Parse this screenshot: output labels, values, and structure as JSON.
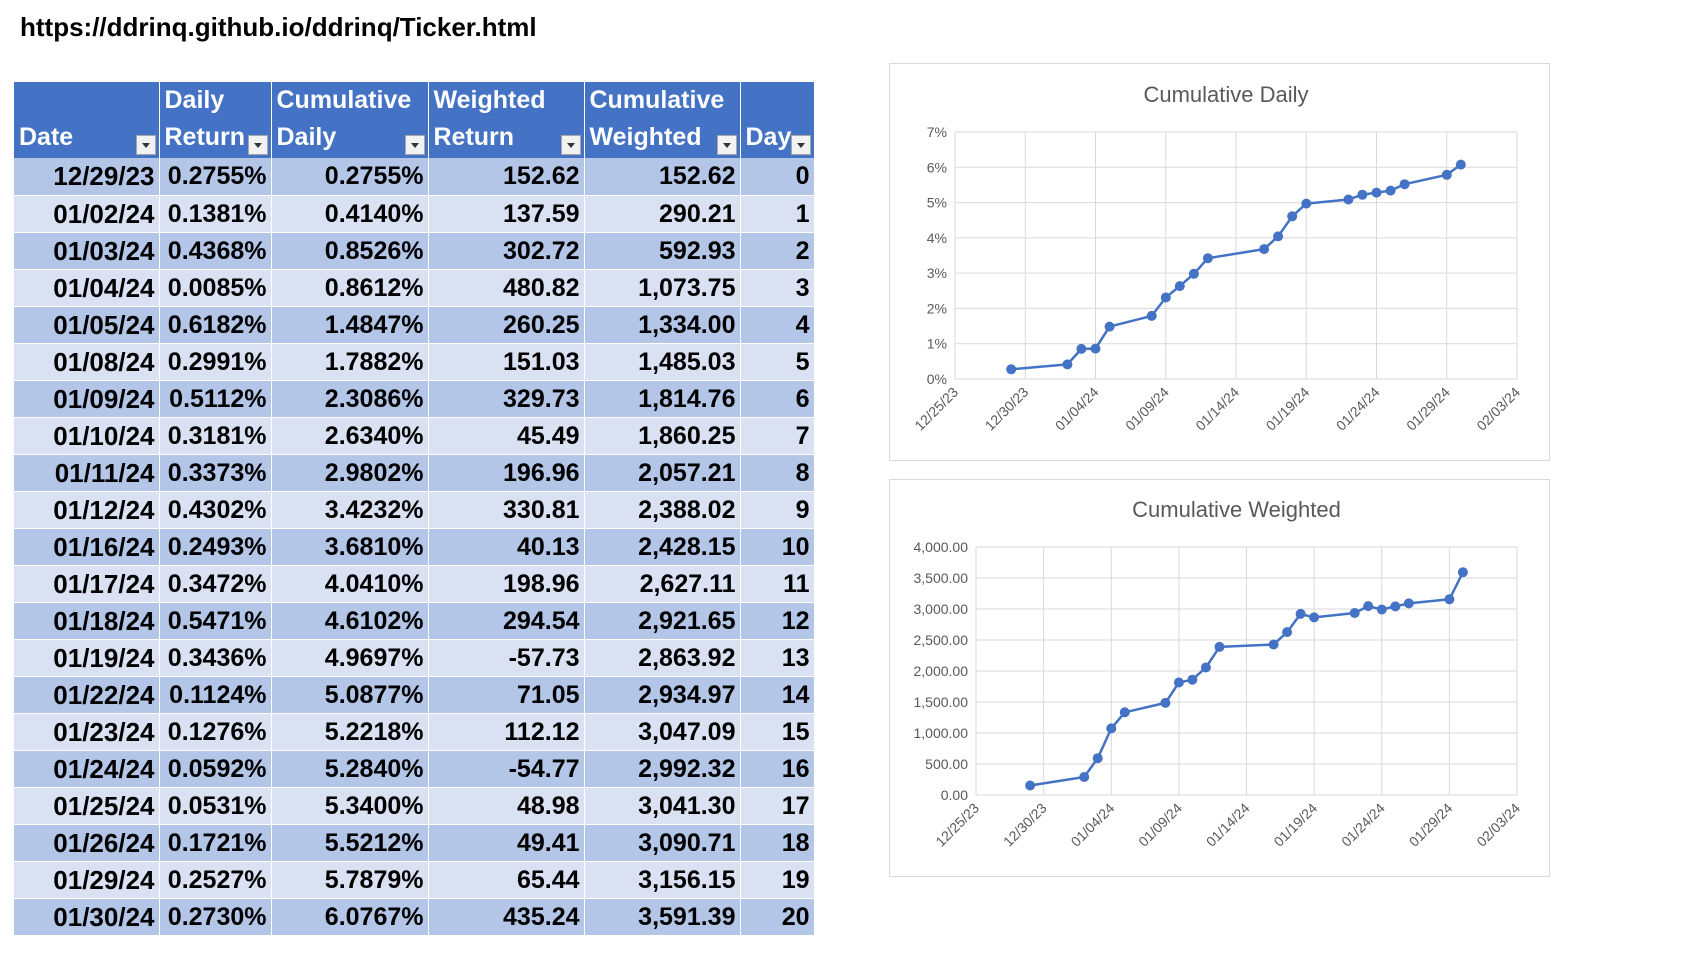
{
  "url": "https://ddrinq.github.io/ddrinq/Ticker.html",
  "table": {
    "headers": [
      {
        "line1": "",
        "line2": "Date"
      },
      {
        "line1": "Daily",
        "line2": "Return"
      },
      {
        "line1": "Cumulative",
        "line2": "Daily"
      },
      {
        "line1": "Weighted",
        "line2": "Return"
      },
      {
        "line1": "Cumulative",
        "line2": "Weighted"
      },
      {
        "line1": "",
        "line2": "Day"
      }
    ],
    "rows": [
      [
        "12/29/23",
        "0.2755%",
        "0.2755%",
        "152.62",
        "152.62",
        "0"
      ],
      [
        "01/02/24",
        "0.1381%",
        "0.4140%",
        "137.59",
        "290.21",
        "1"
      ],
      [
        "01/03/24",
        "0.4368%",
        "0.8526%",
        "302.72",
        "592.93",
        "2"
      ],
      [
        "01/04/24",
        "0.0085%",
        "0.8612%",
        "480.82",
        "1,073.75",
        "3"
      ],
      [
        "01/05/24",
        "0.6182%",
        "1.4847%",
        "260.25",
        "1,334.00",
        "4"
      ],
      [
        "01/08/24",
        "0.2991%",
        "1.7882%",
        "151.03",
        "1,485.03",
        "5"
      ],
      [
        "01/09/24",
        "0.5112%",
        "2.3086%",
        "329.73",
        "1,814.76",
        "6"
      ],
      [
        "01/10/24",
        "0.3181%",
        "2.6340%",
        "45.49",
        "1,860.25",
        "7"
      ],
      [
        "01/11/24",
        "0.3373%",
        "2.9802%",
        "196.96",
        "2,057.21",
        "8"
      ],
      [
        "01/12/24",
        "0.4302%",
        "3.4232%",
        "330.81",
        "2,388.02",
        "9"
      ],
      [
        "01/16/24",
        "0.2493%",
        "3.6810%",
        "40.13",
        "2,428.15",
        "10"
      ],
      [
        "01/17/24",
        "0.3472%",
        "4.0410%",
        "198.96",
        "2,627.11",
        "11"
      ],
      [
        "01/18/24",
        "0.5471%",
        "4.6102%",
        "294.54",
        "2,921.65",
        "12"
      ],
      [
        "01/19/24",
        "0.3436%",
        "4.9697%",
        "-57.73",
        "2,863.92",
        "13"
      ],
      [
        "01/22/24",
        "0.1124%",
        "5.0877%",
        "71.05",
        "2,934.97",
        "14"
      ],
      [
        "01/23/24",
        "0.1276%",
        "5.2218%",
        "112.12",
        "3,047.09",
        "15"
      ],
      [
        "01/24/24",
        "0.0592%",
        "5.2840%",
        "-54.77",
        "2,992.32",
        "16"
      ],
      [
        "01/25/24",
        "0.0531%",
        "5.3400%",
        "48.98",
        "3,041.30",
        "17"
      ],
      [
        "01/26/24",
        "0.1721%",
        "5.5212%",
        "49.41",
        "3,090.71",
        "18"
      ],
      [
        "01/29/24",
        "0.2527%",
        "5.7879%",
        "65.44",
        "3,156.15",
        "19"
      ],
      [
        "01/30/24",
        "0.2730%",
        "6.0767%",
        "435.24",
        "3,591.39",
        "20"
      ]
    ]
  },
  "colors": {
    "header": "#4472c4",
    "row_odd": "#b4c6e7",
    "row_even": "#d9e1f2",
    "series": "#4472c4",
    "grid": "#d9d9d9",
    "axis_text": "#595959"
  },
  "chart_data": [
    {
      "type": "line",
      "title": "Cumulative Daily",
      "x": [
        "12/29/23",
        "01/02/24",
        "01/03/24",
        "01/04/24",
        "01/05/24",
        "01/08/24",
        "01/09/24",
        "01/10/24",
        "01/11/24",
        "01/12/24",
        "01/16/24",
        "01/17/24",
        "01/18/24",
        "01/19/24",
        "01/22/24",
        "01/23/24",
        "01/24/24",
        "01/25/24",
        "01/26/24",
        "01/29/24",
        "01/30/24"
      ],
      "series": [
        {
          "values": [
            0.2755,
            0.414,
            0.8526,
            0.8612,
            1.4847,
            1.7882,
            2.3086,
            2.634,
            2.9802,
            3.4232,
            3.681,
            4.041,
            4.6102,
            4.9697,
            5.0877,
            5.2218,
            5.284,
            5.34,
            5.5212,
            5.7879,
            6.0767
          ]
        }
      ],
      "xticks": [
        "12/25/23",
        "12/30/23",
        "01/04/24",
        "01/09/24",
        "01/14/24",
        "01/19/24",
        "01/24/24",
        "01/29/24",
        "02/03/24"
      ],
      "xlim": [
        "12/25/23",
        "02/03/24"
      ],
      "yticks": [
        "0%",
        "1%",
        "2%",
        "3%",
        "4%",
        "5%",
        "6%",
        "7%"
      ],
      "ylim": [
        0,
        7
      ],
      "grid": true,
      "xlabel": "",
      "ylabel": ""
    },
    {
      "type": "line",
      "title": "Cumulative Weighted",
      "x": [
        "12/29/23",
        "01/02/24",
        "01/03/24",
        "01/04/24",
        "01/05/24",
        "01/08/24",
        "01/09/24",
        "01/10/24",
        "01/11/24",
        "01/12/24",
        "01/16/24",
        "01/17/24",
        "01/18/24",
        "01/19/24",
        "01/22/24",
        "01/23/24",
        "01/24/24",
        "01/25/24",
        "01/26/24",
        "01/29/24",
        "01/30/24"
      ],
      "series": [
        {
          "values": [
            152.62,
            290.21,
            592.93,
            1073.75,
            1334.0,
            1485.03,
            1814.76,
            1860.25,
            2057.21,
            2388.02,
            2428.15,
            2627.11,
            2921.65,
            2863.92,
            2934.97,
            3047.09,
            2992.32,
            3041.3,
            3090.71,
            3156.15,
            3591.39
          ]
        }
      ],
      "xticks": [
        "12/25/23",
        "12/30/23",
        "01/04/24",
        "01/09/24",
        "01/14/24",
        "01/19/24",
        "01/24/24",
        "01/29/24",
        "02/03/24"
      ],
      "xlim": [
        "12/25/23",
        "02/03/24"
      ],
      "yticks": [
        "0.00",
        "500.00",
        "1,000.00",
        "1,500.00",
        "2,000.00",
        "2,500.00",
        "3,000.00",
        "3,500.00",
        "4,000.00"
      ],
      "ylim": [
        0,
        4000
      ],
      "grid": true,
      "xlabel": "",
      "ylabel": ""
    }
  ]
}
